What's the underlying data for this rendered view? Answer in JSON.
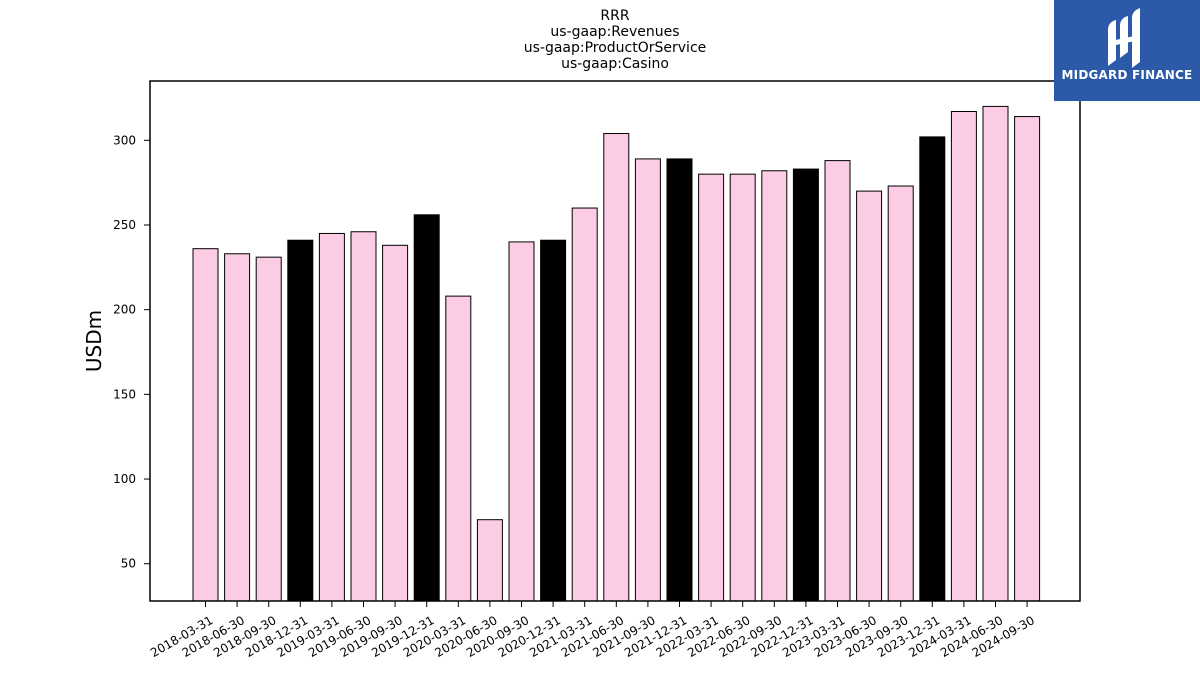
{
  "logo": {
    "text": "MIDGARD FINANCE",
    "icon": "midgard-logo-icon",
    "background": "#2c5aa8"
  },
  "chart_data": {
    "type": "bar",
    "title_lines": [
      "RRR",
      "us-gaap:Revenues",
      "us-gaap:ProductOrService",
      "us-gaap:Casino"
    ],
    "xlabel": "",
    "ylabel": "USDm",
    "ylim": [
      28,
      335
    ],
    "yticks": [
      50,
      100,
      150,
      200,
      250,
      300
    ],
    "grid": false,
    "colors": {
      "quarter": "#fccce4",
      "year_end": "#000000",
      "edge": "#000000"
    },
    "categories": [
      "2018-03-31",
      "2018-06-30",
      "2018-09-30",
      "2018-12-31",
      "2019-03-31",
      "2019-06-30",
      "2019-09-30",
      "2019-12-31",
      "2020-03-31",
      "2020-06-30",
      "2020-09-30",
      "2020-12-31",
      "2021-03-31",
      "2021-06-30",
      "2021-09-30",
      "2021-12-31",
      "2022-03-31",
      "2022-06-30",
      "2022-09-30",
      "2022-12-31",
      "2023-03-31",
      "2023-06-30",
      "2023-09-30",
      "2023-12-31",
      "2024-03-31",
      "2024-06-30",
      "2024-09-30"
    ],
    "values": [
      236,
      233,
      231,
      241,
      245,
      246,
      238,
      256,
      208,
      76,
      240,
      241,
      260,
      304,
      289,
      289,
      280,
      280,
      282,
      283,
      288,
      270,
      273,
      302,
      317,
      320,
      314
    ]
  }
}
